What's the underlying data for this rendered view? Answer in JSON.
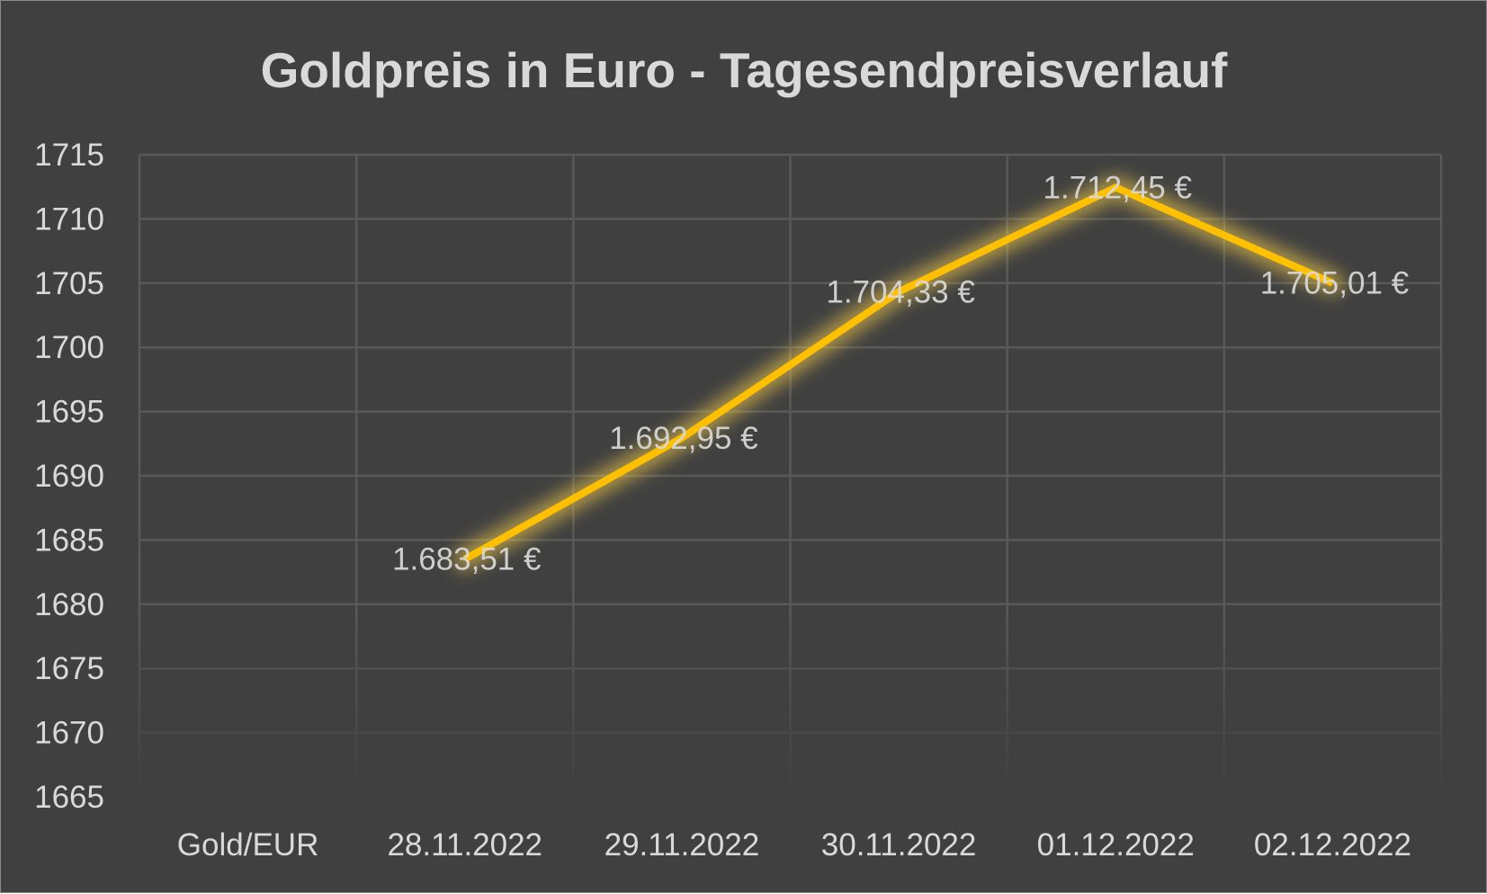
{
  "chart_data": {
    "type": "line",
    "title": "Goldpreis in Euro - Tagesendpreisverlauf",
    "categories": [
      "Gold/EUR",
      "28.11.2022",
      "29.11.2022",
      "30.11.2022",
      "01.12.2022",
      "02.12.2022"
    ],
    "series": [
      {
        "values": [
          null,
          1683.51,
          1692.95,
          1704.33,
          1712.45,
          1705.01
        ],
        "labels": [
          "",
          "1.683,51 €",
          "1.692,95 €",
          "1.704,33 €",
          "1.712,45 €",
          "1.705,01 €"
        ]
      }
    ],
    "ylim": [
      1665,
      1715
    ],
    "ytick_step": 5,
    "yticks": [
      "1715",
      "1710",
      "1705",
      "1700",
      "1695",
      "1690",
      "1685",
      "1680",
      "1675",
      "1670",
      "1665"
    ],
    "grid": true,
    "colors": {
      "background": "#404040",
      "line": "#FFC000",
      "glow": "#FFD54A",
      "grid": "#595959",
      "text": "#D9D9D9"
    }
  }
}
